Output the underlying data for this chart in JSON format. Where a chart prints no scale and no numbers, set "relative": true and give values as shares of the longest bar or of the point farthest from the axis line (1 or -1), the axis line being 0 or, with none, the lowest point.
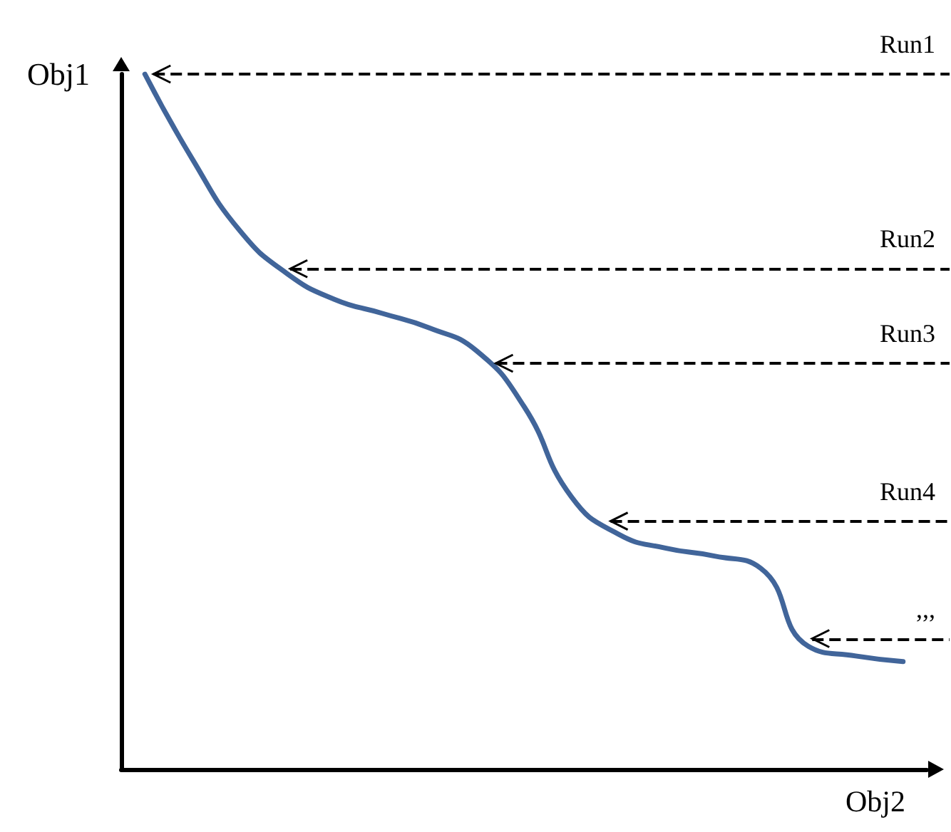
{
  "chart_data": {
    "type": "line",
    "relative": true,
    "xlabel": "Obj2",
    "ylabel": "Obj1",
    "categories": [
      null,
      null,
      null,
      null,
      null,
      null,
      null,
      null,
      null,
      null,
      null,
      null,
      null,
      null,
      null,
      null,
      null
    ],
    "series": [
      {
        "color": "#41659a",
        "values": [
          1.0,
          0.878,
          0.775,
          0.713,
          0.676,
          0.656,
          0.635,
          0.602,
          0.522,
          0.392,
          0.338,
          0.318,
          0.307,
          0.289,
          0.177,
          0.163,
          0.155
        ]
      }
    ],
    "ref_lines": [
      {
        "axis": "y",
        "value": 1.0,
        "label": "Run1",
        "color": "#000000",
        "line_style": "dashed"
      },
      {
        "axis": "y",
        "value": 0.72,
        "label": "Run2",
        "color": "#000000",
        "line_style": "dashed"
      },
      {
        "axis": "y",
        "value": 0.584,
        "label": "Run3",
        "color": "#000000",
        "line_style": "dashed"
      },
      {
        "axis": "y",
        "value": 0.357,
        "label": "Run4",
        "color": "#000000",
        "line_style": "dashed"
      },
      {
        "axis": "y",
        "value": 0.188,
        "label": ",,,",
        "color": "#000000",
        "line_style": "dashed"
      }
    ],
    "grid": false,
    "marker": "none",
    "line_style": "solid"
  }
}
